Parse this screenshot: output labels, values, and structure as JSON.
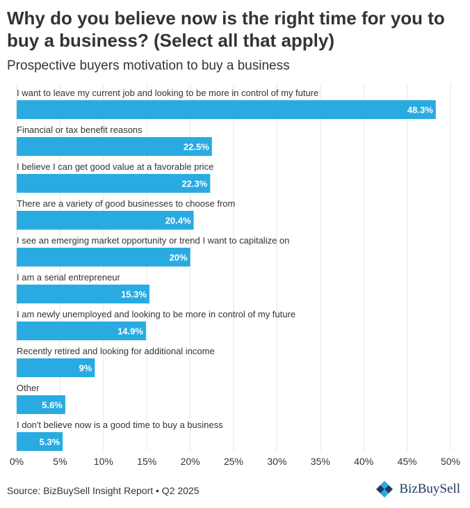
{
  "header": {
    "title": "Why do you believe now is the right time for you to buy a business? (Select all that apply)",
    "subtitle": "Prospective buyers motivation to buy a business"
  },
  "footer": {
    "source": "Source: BizBuySell Insight Report • Q2 2025",
    "logo_text": "BizBuySell",
    "logo_icon": "bizbuysell-logo-icon"
  },
  "colors": {
    "bar": "#29ABE2",
    "grid": "#e6e6e6",
    "label": "#333333",
    "value_label": "#ffffff"
  },
  "chart_data": {
    "type": "bar",
    "orientation": "horizontal",
    "title": "Why do you believe now is the right time for you to buy a business? (Select all that apply)",
    "subtitle": "Prospective buyers motivation to buy a business",
    "categories": [
      "I want to leave my current job and looking to be more in control of my future",
      "Financial or tax benefit reasons",
      "I believe I can get good value at a favorable price",
      "There are a variety of good businesses to choose from",
      "I see an emerging market opportunity or trend I want to capitalize on",
      "I am a serial entrepreneur",
      "I am newly unemployed and looking to be more in control of my future",
      "Recently retired and looking for additional income",
      "Other",
      "I don't believe now is a good time to buy a business"
    ],
    "values": [
      48.3,
      22.5,
      22.3,
      20.4,
      20,
      15.3,
      14.9,
      9,
      5.6,
      5.3
    ],
    "value_labels": [
      "48.3%",
      "22.5%",
      "22.3%",
      "20.4%",
      "20%",
      "15.3%",
      "14.9%",
      "9%",
      "5.6%",
      "5.3%"
    ],
    "xlim": [
      0,
      50
    ],
    "xticks": [
      0,
      5,
      10,
      15,
      20,
      25,
      30,
      35,
      40,
      45,
      50
    ],
    "xtick_labels": [
      "0%",
      "5%",
      "10%",
      "15%",
      "20%",
      "25%",
      "30%",
      "35%",
      "40%",
      "45%",
      "50%"
    ],
    "grid": true
  }
}
